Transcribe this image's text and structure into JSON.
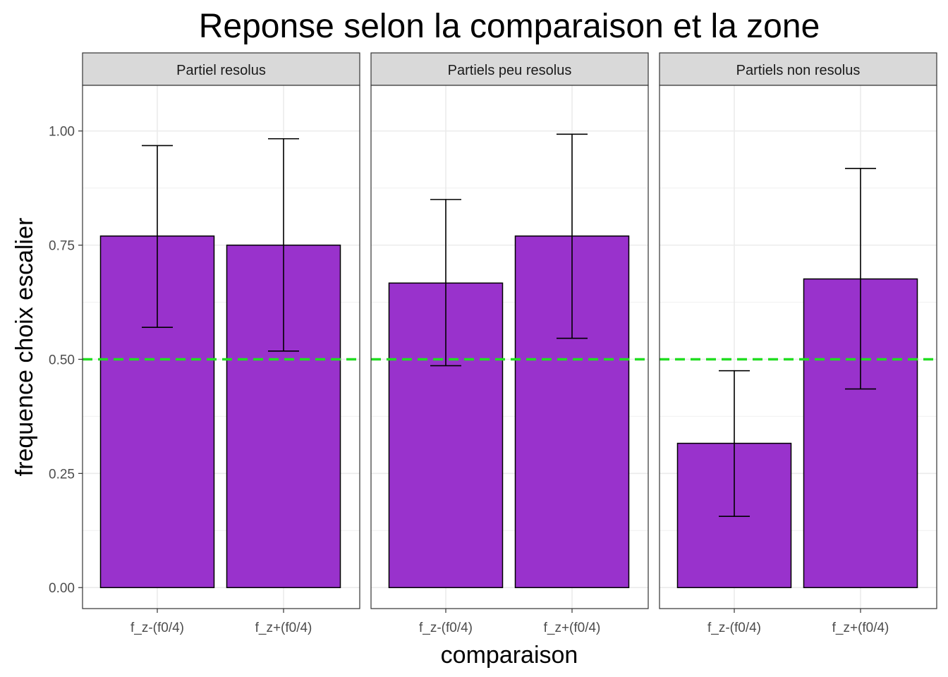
{
  "chart_data": {
    "type": "bar",
    "title": "Reponse selon la comparaison et la zone",
    "xlabel": "comparaison",
    "ylabel": "frequence choix escalier",
    "ylim": [
      -0.046,
      1.1
    ],
    "yticks": [
      "0.00",
      "0.25",
      "0.50",
      "0.75",
      "1.00"
    ],
    "ytick_values": [
      0,
      0.25,
      0.5,
      0.75,
      1.0
    ],
    "categories": [
      "f_z-(f0/4)",
      "f_z+(f0/4)"
    ],
    "reference_line": {
      "y": 0.5,
      "style": "dashed",
      "color": "#22dd22"
    },
    "bar_color": "#9932CC",
    "grid": true,
    "panels": [
      {
        "label": "Partiel resolus",
        "values": [
          0.77,
          0.75
        ],
        "error_low": [
          0.57,
          0.518
        ],
        "error_high": [
          0.968,
          0.983
        ]
      },
      {
        "label": "Partiels peu resolus",
        "values": [
          0.667,
          0.77
        ],
        "error_low": [
          0.486,
          0.546
        ],
        "error_high": [
          0.85,
          0.993
        ]
      },
      {
        "label": "Partiels non resolus",
        "values": [
          0.316,
          0.676
        ],
        "error_low": [
          0.156,
          0.435
        ],
        "error_high": [
          0.475,
          0.918
        ]
      }
    ]
  }
}
